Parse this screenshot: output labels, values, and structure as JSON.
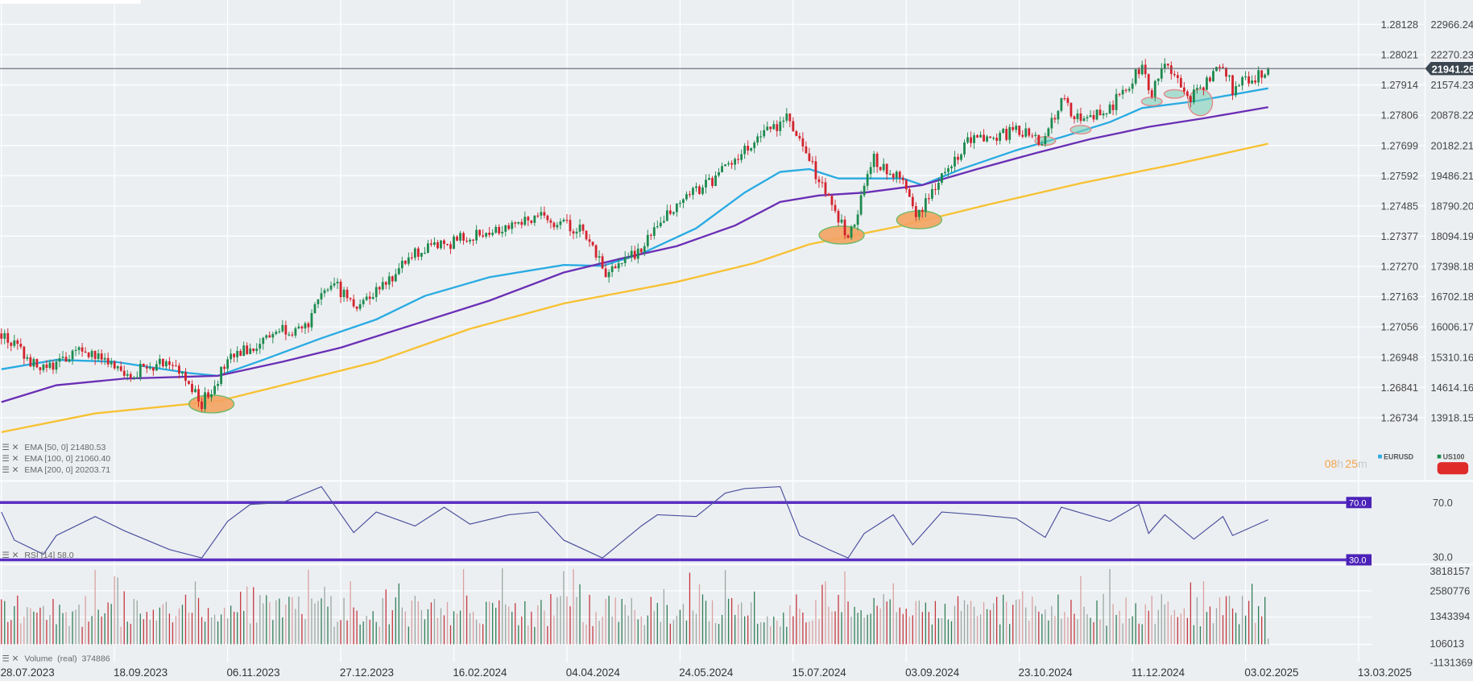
{
  "chart_data": {
    "type": "candlestick",
    "instruments": {
      "primary": "US100",
      "compare": "EURUSD"
    },
    "x_unit": "bar index (35 bars between date labels)",
    "date_labels": [
      "28.07.2023",
      "18.09.2023",
      "06.11.2023",
      "27.12.2023",
      "16.02.2024",
      "04.04.2024",
      "24.05.2024",
      "15.07.2024",
      "03.09.2024",
      "23.10.2024",
      "11.12.2024",
      "03.02.2025",
      "13.03.2025"
    ],
    "eurusd_ticks": [
      "1.28128",
      "1.28021",
      "1.27914",
      "1.27806",
      "1.27699",
      "1.27592",
      "1.27485",
      "1.27377",
      "1.27270",
      "1.27163",
      "1.27056",
      "1.26948",
      "1.26841",
      "1.26734"
    ],
    "us100_ticks": [
      "22966.24",
      "22270.23",
      "21574.23",
      "20878.22",
      "20182.21",
      "19486.21",
      "18790.20",
      "18094.19",
      "17398.18",
      "16702.18",
      "16006.17",
      "15310.16",
      "14614.16",
      "13918.15"
    ],
    "ylim": [
      13918.15,
      22966.24
    ],
    "current_price": "21941.26",
    "close_path": [
      [
        0,
        15855
      ],
      [
        12,
        14988
      ],
      [
        26,
        15486
      ],
      [
        38,
        14880
      ],
      [
        52,
        15269
      ],
      [
        62,
        14232
      ],
      [
        70,
        15204
      ],
      [
        87,
        16004
      ],
      [
        93,
        15853
      ],
      [
        102,
        17043
      ],
      [
        110,
        16502
      ],
      [
        119,
        17043
      ],
      [
        128,
        17691
      ],
      [
        151,
        18231
      ],
      [
        166,
        18556
      ],
      [
        180,
        18231
      ],
      [
        187,
        17258
      ],
      [
        198,
        17799
      ],
      [
        209,
        18880
      ],
      [
        221,
        19421
      ],
      [
        230,
        20069
      ],
      [
        243,
        20826
      ],
      [
        249,
        19961
      ],
      [
        256,
        18988
      ],
      [
        262,
        18015
      ],
      [
        270,
        19853
      ],
      [
        279,
        19421
      ],
      [
        283,
        18556
      ],
      [
        291,
        19529
      ],
      [
        299,
        20285
      ],
      [
        314,
        20501
      ],
      [
        323,
        20285
      ],
      [
        328,
        21258
      ],
      [
        334,
        20718
      ],
      [
        343,
        21042
      ],
      [
        353,
        22015
      ],
      [
        356,
        21366
      ],
      [
        360,
        22015
      ],
      [
        368,
        21258
      ],
      [
        378,
        22015
      ],
      [
        381,
        21474
      ],
      [
        392,
        21941
      ]
    ],
    "ema": [
      {
        "label": "EMA [50, 0] 21480.53",
        "color": "#29abe2",
        "points": [
          [
            0,
            15031
          ],
          [
            17,
            15248
          ],
          [
            35,
            15204
          ],
          [
            58,
            14945
          ],
          [
            67,
            14880
          ],
          [
            81,
            15248
          ],
          [
            99,
            15745
          ],
          [
            116,
            16177
          ],
          [
            131,
            16718
          ],
          [
            151,
            17150
          ],
          [
            174,
            17431
          ],
          [
            186,
            17410
          ],
          [
            198,
            17691
          ],
          [
            215,
            18275
          ],
          [
            230,
            19097
          ],
          [
            241,
            19572
          ],
          [
            250,
            19637
          ],
          [
            259,
            19421
          ],
          [
            267,
            19421
          ],
          [
            279,
            19421
          ],
          [
            285,
            19270
          ],
          [
            297,
            19637
          ],
          [
            314,
            20069
          ],
          [
            329,
            20393
          ],
          [
            343,
            20718
          ],
          [
            353,
            21042
          ],
          [
            369,
            21193
          ],
          [
            392,
            21496
          ]
        ]
      },
      {
        "label": "EMA [100, 0] 21060.40",
        "color": "#6a2fb5",
        "points": [
          [
            0,
            14275
          ],
          [
            17,
            14664
          ],
          [
            38,
            14815
          ],
          [
            67,
            14880
          ],
          [
            87,
            15204
          ],
          [
            105,
            15529
          ],
          [
            128,
            16069
          ],
          [
            151,
            16610
          ],
          [
            174,
            17258
          ],
          [
            192,
            17582
          ],
          [
            209,
            17864
          ],
          [
            227,
            18339
          ],
          [
            241,
            18880
          ],
          [
            253,
            19031
          ],
          [
            267,
            19096
          ],
          [
            285,
            19270
          ],
          [
            302,
            19637
          ],
          [
            320,
            20004
          ],
          [
            337,
            20329
          ],
          [
            355,
            20609
          ],
          [
            372,
            20804
          ],
          [
            392,
            21063
          ]
        ]
      },
      {
        "label": "EMA [200, 0] 20203.71",
        "color": "#f7c132",
        "points": [
          [
            0,
            13583
          ],
          [
            29,
            14015
          ],
          [
            67,
            14296
          ],
          [
            87,
            14664
          ],
          [
            116,
            15204
          ],
          [
            145,
            15961
          ],
          [
            174,
            16545
          ],
          [
            209,
            17042
          ],
          [
            233,
            17474
          ],
          [
            250,
            17907
          ],
          [
            279,
            18339
          ],
          [
            305,
            18815
          ],
          [
            334,
            19312
          ],
          [
            363,
            19745
          ],
          [
            392,
            20221
          ]
        ]
      }
    ],
    "annotations": [
      {
        "type": "support-touch",
        "bar": 65,
        "value": 14232,
        "color": "#f4a261"
      },
      {
        "type": "support-touch",
        "bar": 260,
        "value": 18120,
        "color": "#f4a261"
      },
      {
        "type": "support-touch",
        "bar": 284,
        "value": 18470,
        "color": "#f4a261"
      },
      {
        "type": "ema-touch",
        "bar": 323,
        "value": 20285,
        "color": "#7fd1b9"
      },
      {
        "type": "ema-touch",
        "bar": 334,
        "value": 20545,
        "color": "#7fd1b9"
      },
      {
        "type": "ema-touch",
        "bar": 356,
        "value": 21193,
        "color": "#7fd1b9"
      },
      {
        "type": "ema-touch",
        "bar": 363,
        "value": 21366,
        "color": "#7fd1b9"
      },
      {
        "type": "ema-touch",
        "bar": 371,
        "value": 21170,
        "color": "#7fd1b9"
      }
    ],
    "rsi": {
      "label": "RSI [14] 58.0",
      "upper": "70.0",
      "lower": "30.0",
      "points": [
        [
          0,
          63.4
        ],
        [
          4,
          43.8
        ],
        [
          13,
          33.9
        ],
        [
          17,
          47
        ],
        [
          29,
          60.2
        ],
        [
          38,
          50.3
        ],
        [
          52,
          37.2
        ],
        [
          62,
          31.3
        ],
        [
          70,
          56.9
        ],
        [
          77,
          68.7
        ],
        [
          87,
          70
        ],
        [
          99,
          81.1
        ],
        [
          109,
          49
        ],
        [
          116,
          63.4
        ],
        [
          128,
          53.6
        ],
        [
          137,
          66.7
        ],
        [
          145,
          54.9
        ],
        [
          157,
          61.5
        ],
        [
          166,
          63.4
        ],
        [
          174,
          43.8
        ],
        [
          186,
          31.3
        ],
        [
          198,
          53.6
        ],
        [
          203,
          61.5
        ],
        [
          215,
          60.2
        ],
        [
          224,
          76.6
        ],
        [
          230,
          79.8
        ],
        [
          241,
          81.1
        ],
        [
          247,
          47
        ],
        [
          256,
          37.2
        ],
        [
          262,
          31.3
        ],
        [
          267,
          48.4
        ],
        [
          276,
          61.5
        ],
        [
          282,
          40.5
        ],
        [
          291,
          63.4
        ],
        [
          302,
          61.5
        ],
        [
          314,
          58.9
        ],
        [
          323,
          45.7
        ],
        [
          328,
          66.7
        ],
        [
          343,
          56.9
        ],
        [
          352,
          68.7
        ],
        [
          355,
          48.4
        ],
        [
          360,
          61.5
        ],
        [
          369,
          44.4
        ],
        [
          378,
          60.2
        ],
        [
          381,
          47
        ],
        [
          392,
          58
        ]
      ]
    },
    "volume": {
      "label": "Volume  (real)  374886",
      "last": 374886,
      "ticks": [
        "3818157",
        "2580776",
        "1343394",
        "106013",
        "-1131369"
      ]
    }
  },
  "legend": {
    "eurusd": "EURUSD",
    "us100": "US100"
  },
  "timer": {
    "hours": "08",
    "h": "h",
    "minutes": "25",
    "m": "m"
  },
  "colors": {
    "up": "#1d8a4e",
    "down": "#d3232d",
    "bg": "#eceff2",
    "rsi_band": "#5a2fc2",
    "rsi_line": "#4a4f9c"
  }
}
